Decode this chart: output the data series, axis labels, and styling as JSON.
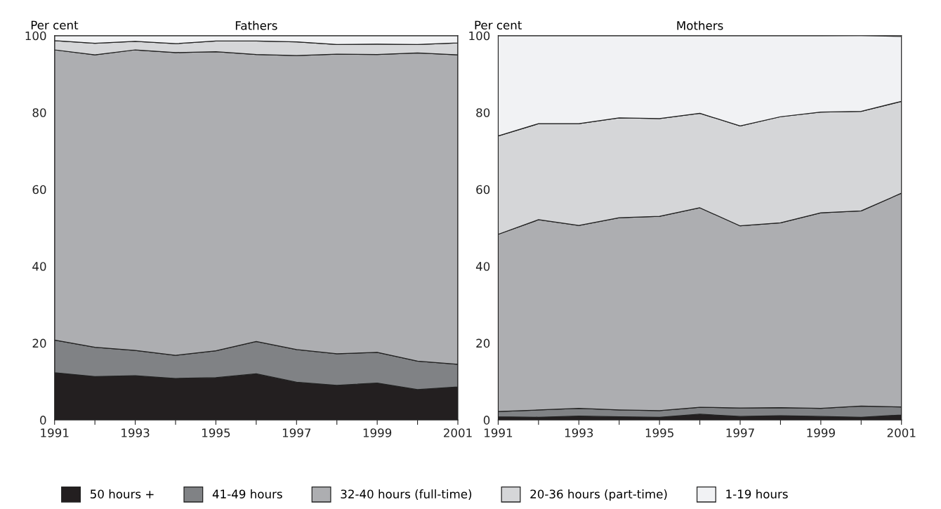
{
  "chart_data": [
    {
      "type": "area",
      "stacked": true,
      "title": "Fathers",
      "ylabel": "Per cent",
      "x": [
        1991,
        1992,
        1993,
        1994,
        1995,
        1996,
        1997,
        1998,
        1999,
        2000,
        2001
      ],
      "xlim": [
        1991,
        2001
      ],
      "xticks": [
        1991,
        {
          "value": 1992,
          "label": null
        },
        1993,
        {
          "value": 1994,
          "label": null
        },
        1995,
        {
          "value": 1996,
          "label": null
        },
        1997,
        {
          "value": 1998,
          "label": null
        },
        1999,
        {
          "value": 2000,
          "label": null
        },
        2001
      ],
      "ylim": [
        0,
        100
      ],
      "yticks": [
        0,
        20,
        40,
        60,
        80,
        100
      ],
      "legend": "bottom",
      "series": [
        {
          "name": "50 hours +",
          "color": "#231f20",
          "values": [
            12.3,
            11.3,
            11.5,
            10.8,
            11.0,
            12.0,
            9.8,
            9.0,
            9.6,
            7.9,
            8.6
          ]
        },
        {
          "name": "41-49 hours",
          "color": "#808285",
          "values": [
            8.5,
            7.6,
            6.6,
            6.0,
            7.0,
            8.4,
            8.5,
            8.2,
            8.0,
            7.4,
            5.9
          ]
        },
        {
          "name": "32-40 hours (full-time)",
          "color": "#adaeb1",
          "values": [
            75.5,
            76.1,
            78.2,
            78.8,
            77.8,
            74.7,
            76.5,
            78.0,
            77.5,
            80.2,
            80.5
          ]
        },
        {
          "name": "20-36 hours (part-time)",
          "color": "#d5d6d8",
          "values": [
            2.4,
            3.0,
            2.2,
            2.3,
            2.8,
            3.5,
            3.6,
            2.5,
            2.7,
            2.2,
            3.1
          ]
        },
        {
          "name": "1-19 hours",
          "color": "#f1f2f4",
          "values": [
            1.3,
            2.0,
            1.5,
            2.1,
            1.4,
            1.4,
            1.6,
            2.3,
            2.2,
            2.3,
            1.9
          ]
        }
      ]
    },
    {
      "type": "area",
      "stacked": true,
      "title": "Mothers",
      "ylabel": "Per cent",
      "x": [
        1991,
        1992,
        1993,
        1994,
        1995,
        1996,
        1997,
        1998,
        1999,
        2000,
        2001
      ],
      "xlim": [
        1991,
        2001
      ],
      "xticks": [
        1991,
        {
          "value": 1992,
          "label": null
        },
        1993,
        {
          "value": 1994,
          "label": null
        },
        1995,
        {
          "value": 1996,
          "label": null
        },
        1997,
        {
          "value": 1998,
          "label": null
        },
        1999,
        {
          "value": 2000,
          "label": null
        },
        2001
      ],
      "ylim": [
        0,
        100
      ],
      "yticks": [
        0,
        20,
        40,
        60,
        80,
        100
      ],
      "legend": "bottom",
      "series": [
        {
          "name": "50 hours +",
          "color": "#231f20",
          "values": [
            0.8,
            0.7,
            1.0,
            0.8,
            0.7,
            1.5,
            0.9,
            1.1,
            0.9,
            0.7,
            1.3
          ]
        },
        {
          "name": "41-49 hours",
          "color": "#808285",
          "values": [
            1.4,
            1.9,
            2.0,
            1.8,
            1.7,
            1.8,
            2.2,
            2.1,
            2.1,
            2.9,
            2.1
          ]
        },
        {
          "name": "32-40 hours (full-time)",
          "color": "#adaeb1",
          "values": [
            46.1,
            49.5,
            47.6,
            50.0,
            50.6,
            51.9,
            47.4,
            48.1,
            50.9,
            50.8,
            55.6
          ]
        },
        {
          "name": "20-36 hours (part-time)",
          "color": "#d5d6d8",
          "values": [
            25.6,
            25.0,
            26.5,
            26.0,
            25.4,
            24.6,
            26.0,
            27.6,
            26.2,
            25.9,
            23.9
          ]
        },
        {
          "name": "1-19 hours",
          "color": "#f1f2f4",
          "values": [
            26.1,
            22.9,
            22.9,
            21.4,
            21.6,
            20.2,
            23.5,
            21.1,
            19.9,
            19.7,
            16.9
          ]
        }
      ]
    }
  ]
}
